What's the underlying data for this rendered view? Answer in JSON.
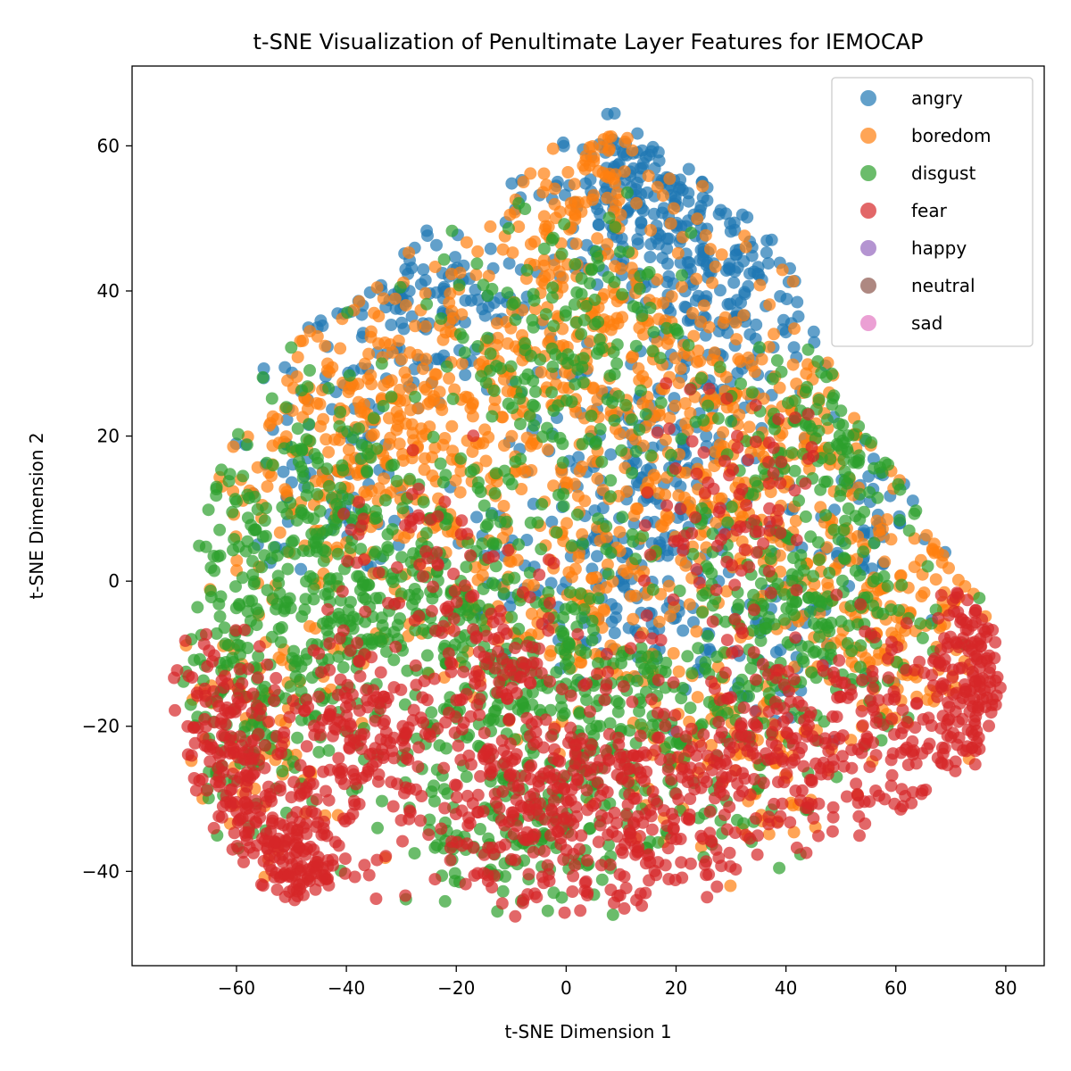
{
  "chart_data": {
    "type": "scatter",
    "title": "t-SNE Visualization of Penultimate Layer Features for IEMOCAP",
    "xlabel": "t-SNE Dimension 1",
    "ylabel": "t-SNE Dimension 2",
    "xlim": [
      -79,
      87
    ],
    "ylim": [
      -53,
      71
    ],
    "xticks": [
      -60,
      -40,
      -20,
      0,
      20,
      40,
      60,
      80
    ],
    "yticks": [
      -40,
      -20,
      0,
      20,
      40,
      60
    ],
    "xtick_labels": [
      "−60",
      "−40",
      "−20",
      "0",
      "20",
      "40",
      "60",
      "80"
    ],
    "ytick_labels": [
      "−40",
      "−20",
      "0",
      "20",
      "40",
      "60"
    ],
    "grid": false,
    "legend_position": "top-right",
    "series": [
      {
        "name": "angry",
        "color": "#1f77b4",
        "clusters": [
          {
            "cx": 15,
            "cy": 52,
            "sx": 10,
            "sy": 7,
            "n": 200
          },
          {
            "cx": -25,
            "cy": 38,
            "sx": 9,
            "sy": 5,
            "n": 120
          },
          {
            "cx": 32,
            "cy": 38,
            "sx": 9,
            "sy": 7,
            "n": 130
          },
          {
            "cx": 15,
            "cy": 20,
            "sx": 12,
            "sy": 7,
            "n": 130
          },
          {
            "cx": 8,
            "cy": 2,
            "sx": 12,
            "sy": 6,
            "n": 140
          },
          {
            "cx": -42,
            "cy": 18,
            "sx": 10,
            "sy": 10,
            "n": 90
          },
          {
            "cx": 55,
            "cy": 8,
            "sx": 10,
            "sy": 7,
            "n": 60
          },
          {
            "cx": 30,
            "cy": -10,
            "sx": 10,
            "sy": 6,
            "n": 60
          }
        ]
      },
      {
        "name": "boredom",
        "color": "#ff7f0e",
        "clusters": [
          {
            "cx": -35,
            "cy": 20,
            "sx": 14,
            "sy": 10,
            "n": 320
          },
          {
            "cx": 0,
            "cy": 35,
            "sx": 14,
            "sy": 10,
            "n": 260
          },
          {
            "cx": 35,
            "cy": 20,
            "sx": 14,
            "sy": 12,
            "n": 280
          },
          {
            "cx": 0,
            "cy": 0,
            "sx": 16,
            "sy": 10,
            "n": 220
          },
          {
            "cx": 60,
            "cy": -5,
            "sx": 10,
            "sy": 9,
            "n": 160
          },
          {
            "cx": -55,
            "cy": -20,
            "sx": 8,
            "sy": 10,
            "n": 80
          },
          {
            "cx": 5,
            "cy": 55,
            "sx": 6,
            "sy": 5,
            "n": 60
          },
          {
            "cx": 30,
            "cy": -25,
            "sx": 12,
            "sy": 7,
            "n": 90
          }
        ]
      },
      {
        "name": "disgust",
        "color": "#2ca02c",
        "clusters": [
          {
            "cx": -45,
            "cy": 5,
            "sx": 12,
            "sy": 12,
            "n": 300
          },
          {
            "cx": -20,
            "cy": -10,
            "sx": 14,
            "sy": 10,
            "n": 260
          },
          {
            "cx": 10,
            "cy": -20,
            "sx": 15,
            "sy": 10,
            "n": 280
          },
          {
            "cx": 45,
            "cy": -5,
            "sx": 12,
            "sy": 10,
            "n": 220
          },
          {
            "cx": 0,
            "cy": 30,
            "sx": 12,
            "sy": 12,
            "n": 200
          },
          {
            "cx": -60,
            "cy": -15,
            "sx": 6,
            "sy": 10,
            "n": 120
          },
          {
            "cx": 50,
            "cy": 18,
            "sx": 10,
            "sy": 6,
            "n": 110
          },
          {
            "cx": -10,
            "cy": -35,
            "sx": 12,
            "sy": 6,
            "n": 100
          }
        ]
      },
      {
        "name": "fear",
        "color": "#d62728",
        "clusters": [
          {
            "cx": -60,
            "cy": -25,
            "sx": 5,
            "sy": 8,
            "n": 180
          },
          {
            "cx": -48,
            "cy": -38,
            "sx": 5,
            "sy": 5,
            "n": 140
          },
          {
            "cx": -38,
            "cy": -22,
            "sx": 7,
            "sy": 6,
            "n": 160
          },
          {
            "cx": -15,
            "cy": -12,
            "sx": 8,
            "sy": 6,
            "n": 120
          },
          {
            "cx": -10,
            "cy": -32,
            "sx": 9,
            "sy": 7,
            "n": 150
          },
          {
            "cx": 10,
            "cy": -30,
            "sx": 10,
            "sy": 9,
            "n": 240
          },
          {
            "cx": 35,
            "cy": -25,
            "sx": 8,
            "sy": 8,
            "n": 140
          },
          {
            "cx": 60,
            "cy": -22,
            "sx": 10,
            "sy": 7,
            "n": 180
          },
          {
            "cx": 75,
            "cy": -12,
            "sx": 4,
            "sy": 8,
            "n": 120
          },
          {
            "cx": 30,
            "cy": 10,
            "sx": 8,
            "sy": 9,
            "n": 90
          },
          {
            "cx": -25,
            "cy": 5,
            "sx": 8,
            "sy": 6,
            "n": 50
          }
        ]
      },
      {
        "name": "happy",
        "color": "#9467bd",
        "clusters": []
      },
      {
        "name": "neutral",
        "color": "#8c564b",
        "clusters": []
      },
      {
        "name": "sad",
        "color": "#e377c2",
        "clusters": []
      }
    ],
    "boundary": [
      [
        -73,
        -15
      ],
      [
        -66,
        -33
      ],
      [
        -52,
        -45
      ],
      [
        -40,
        -43
      ],
      [
        -20,
        -46
      ],
      [
        0,
        -48
      ],
      [
        20,
        -46
      ],
      [
        40,
        -40
      ],
      [
        60,
        -33
      ],
      [
        75,
        -25
      ],
      [
        80,
        -15
      ],
      [
        78,
        -5
      ],
      [
        70,
        3
      ],
      [
        62,
        13
      ],
      [
        50,
        25
      ],
      [
        45,
        38
      ],
      [
        35,
        50
      ],
      [
        25,
        55
      ],
      [
        15,
        62
      ],
      [
        7,
        66
      ],
      [
        -5,
        58
      ],
      [
        -18,
        54
      ],
      [
        -35,
        41
      ],
      [
        -55,
        31
      ],
      [
        -64,
        13
      ],
      [
        -70,
        -2
      ]
    ]
  }
}
